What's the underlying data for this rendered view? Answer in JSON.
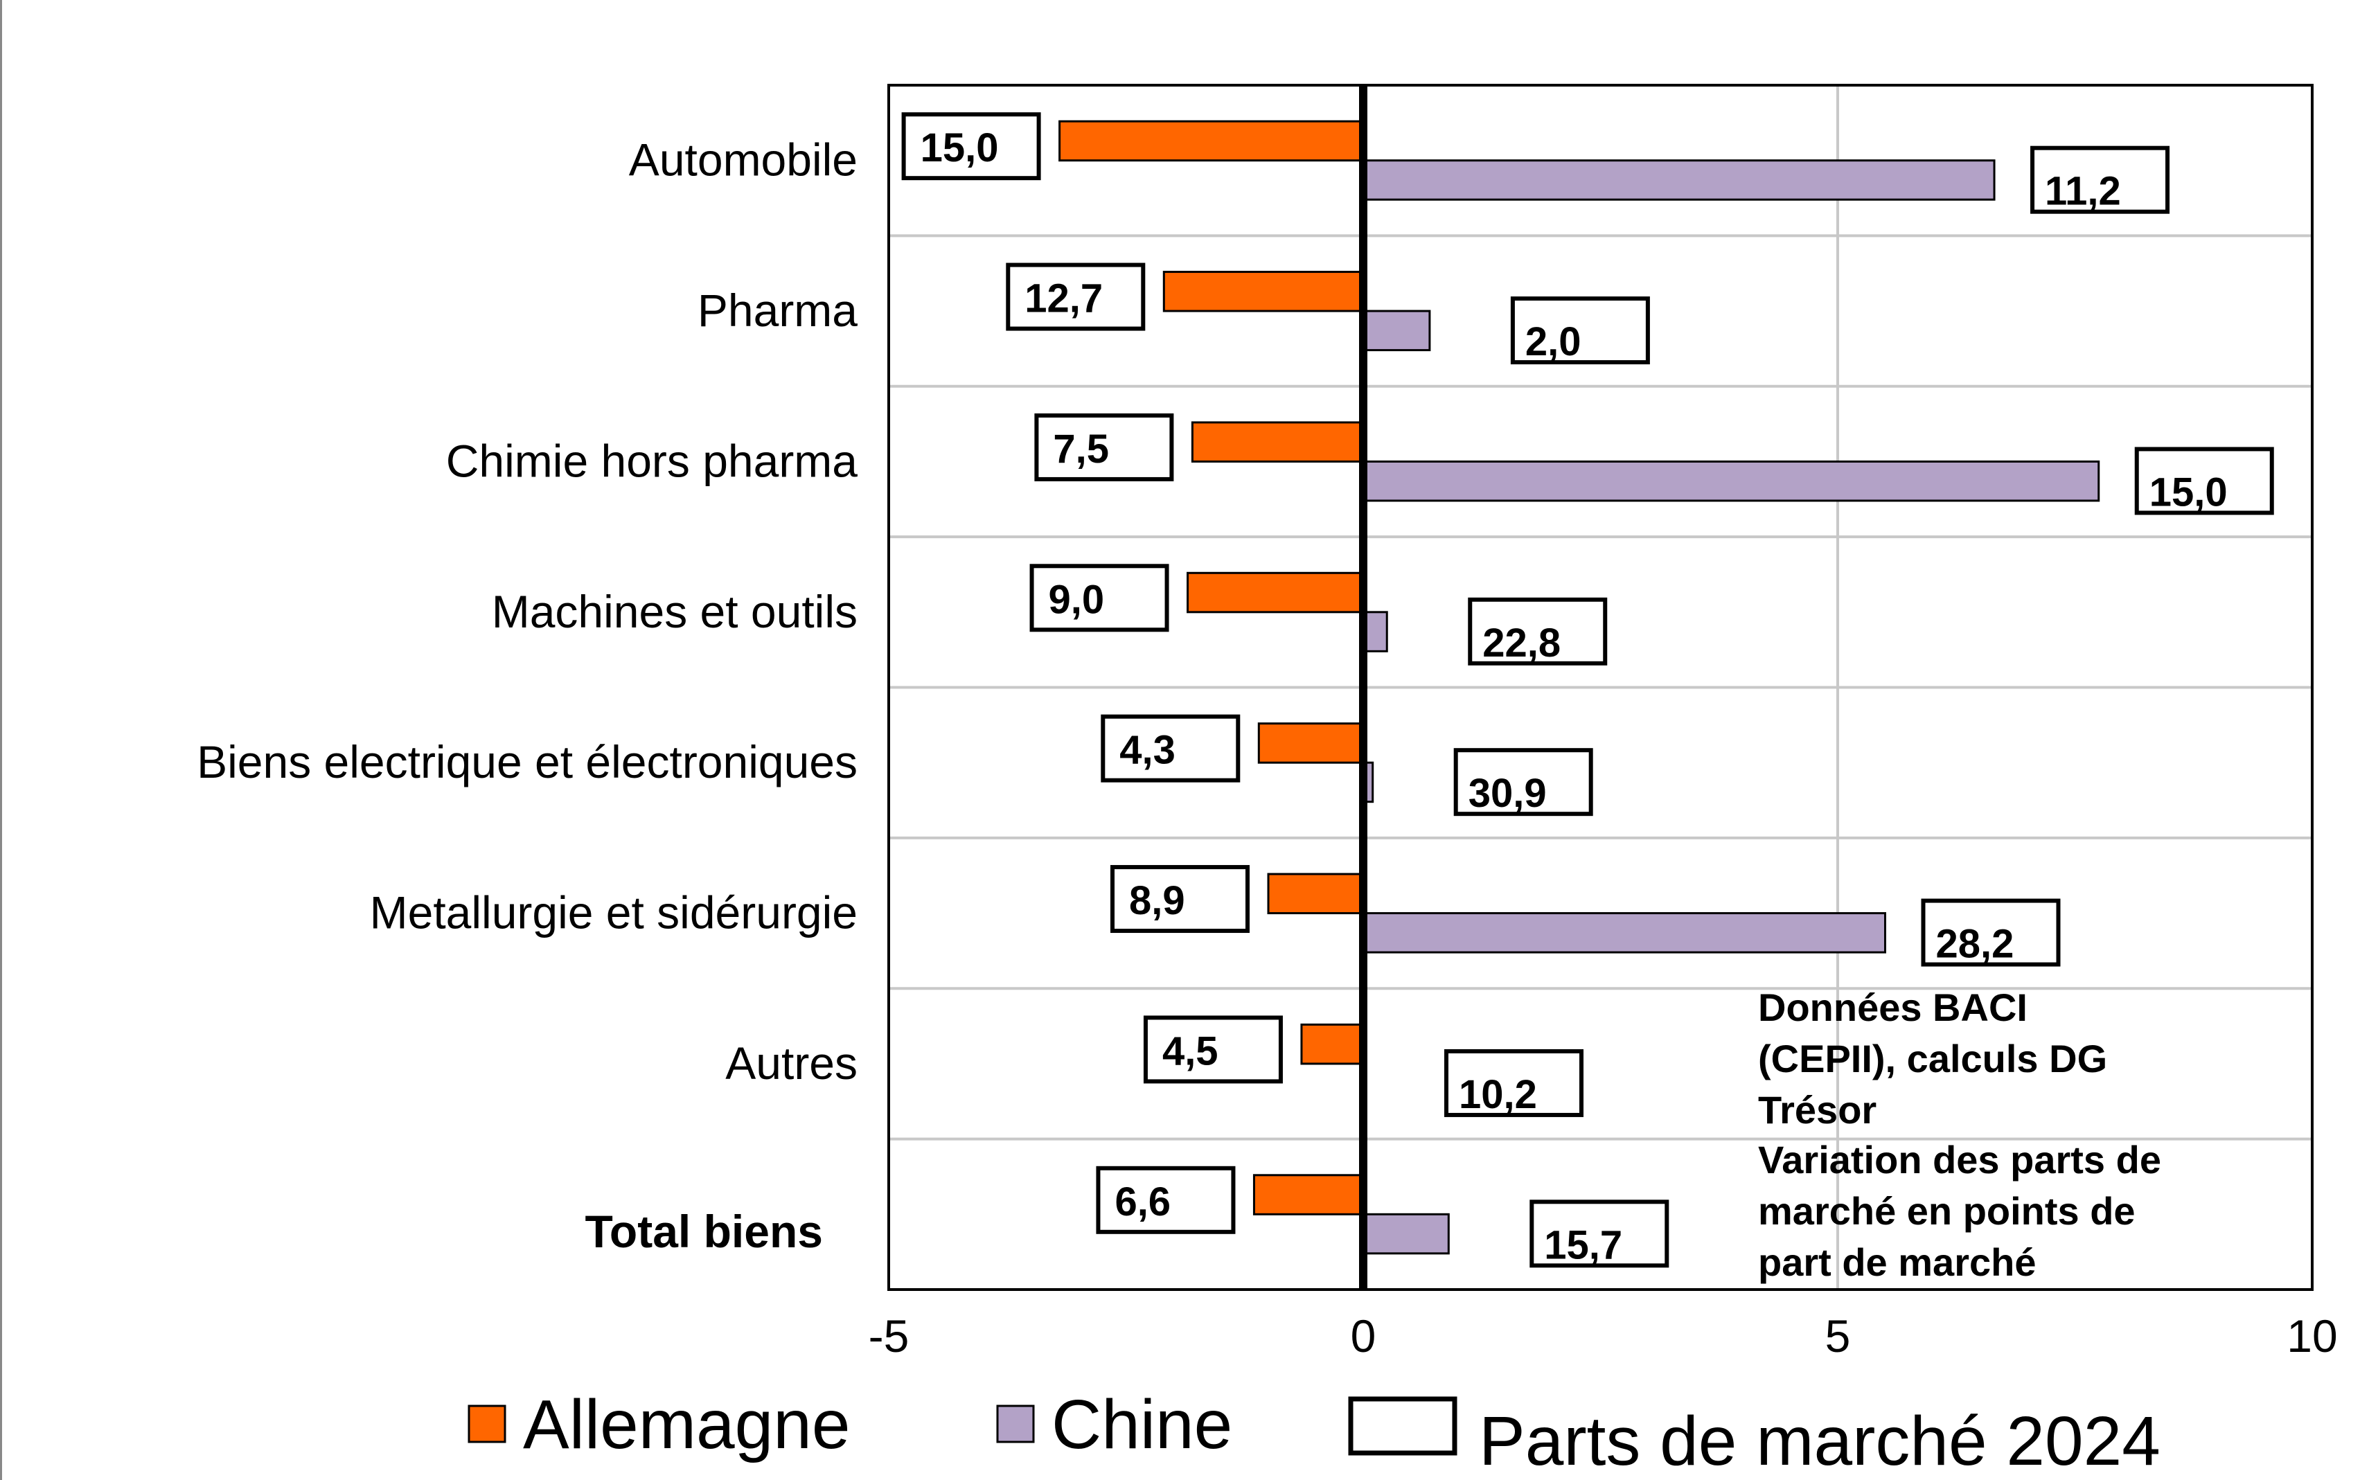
{
  "chart_data": {
    "type": "bar",
    "orientation": "horizontal",
    "categories": [
      "Automobile",
      "Pharma",
      "Chimie hors pharma",
      "Machines  et outils",
      "Biens electrique et électroniques",
      "Metallurgie et sidérurgie",
      "Autres",
      "Total biens"
    ],
    "bold_categories": [
      "Total biens"
    ],
    "series": [
      {
        "name": "Allemagne",
        "color": "#ff6600",
        "values": [
          -3.2,
          -2.1,
          -1.8,
          -1.85,
          -1.1,
          -1.0,
          -0.65,
          -1.15
        ],
        "share_labels": [
          "15,0",
          "12,7",
          "7,5",
          "9,0",
          "4,3",
          "8,9",
          "4,5",
          "6,6"
        ]
      },
      {
        "name": "Chine",
        "color": "#b3a2c7",
        "values": [
          6.65,
          0.7,
          7.75,
          0.25,
          0.1,
          5.5,
          0,
          0.9
        ],
        "share_labels": [
          "11,2",
          "2,0",
          "15,0",
          "22,8",
          "30,9",
          "28,2",
          "10,2",
          "15,7"
        ]
      }
    ],
    "box_legend_label": "Parts de marché 2024",
    "xlim": [
      -5,
      10
    ],
    "xticks": [
      -5,
      0,
      5,
      10
    ],
    "xtick_labels": [
      "-5",
      "0",
      "5",
      "10"
    ],
    "grid": true,
    "legend_position": "bottom",
    "annotation": [
      "Données BACI",
      "(CEPII), calculs DG",
      "Trésor",
      "Variation des parts de",
      "marché en points de",
      "part de marché"
    ]
  }
}
